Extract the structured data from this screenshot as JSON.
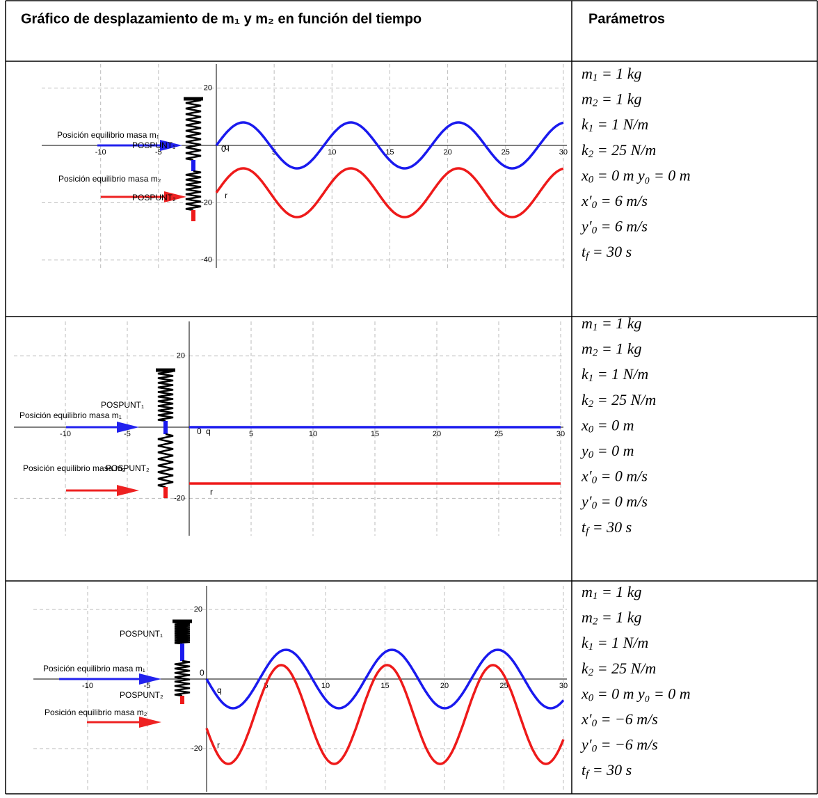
{
  "header": {
    "title": "Gráfico de desplazamiento de m₁ y m₂ en función del tiempo",
    "parameters": "Parámetros"
  },
  "rows": [
    {
      "plot": {
        "xticks": [
          -10,
          -5,
          5,
          10,
          15,
          20,
          25,
          30
        ],
        "yticks": [
          20,
          -20,
          -40
        ],
        "origin": "0",
        "equilibrium_1": "Posición equilibrio masa m₁",
        "equilibrium_2": "Posición equilibrio masa m₂",
        "pospunt_1": "POSPUNT₁",
        "pospunt_2": "POSPUNT₂",
        "curve_1": "q",
        "curve_2": "r"
      },
      "parameters": [
        {
          "base": "m",
          "sub": "1",
          "rest": " = 1 kg"
        },
        {
          "base": "m",
          "sub": "2",
          "rest": " = 1 kg"
        },
        {
          "base": "k",
          "sub": "1",
          "rest": " = 1 N/m"
        },
        {
          "base": "k",
          "sub": "2",
          "rest": " = 25 N/m"
        },
        {
          "base": "x",
          "sub": "0",
          "rest": " = 0 m y₀ = 0 m"
        },
        {
          "base": "x′",
          "sub": "0",
          "rest": " = 6 m/s"
        },
        {
          "base": "y′",
          "sub": "0",
          "rest": " = 6 m/s"
        },
        {
          "base": "t",
          "sub": "f",
          "rest": " = 30 s"
        }
      ]
    },
    {
      "plot": {
        "xticks": [
          -10,
          -5,
          5,
          10,
          15,
          20,
          25,
          30
        ],
        "yticks": [
          20,
          -20
        ],
        "origin": "0",
        "equilibrium_1": "Posición equilibrio masa m₁",
        "equilibrium_2": "Posición equilibrio masa m₂",
        "pospunt_1": "POSPUNT₁",
        "pospunt_2": "POSPUNT₂",
        "curve_1": "q",
        "curve_2": "r"
      },
      "parameters": [
        {
          "base": "m",
          "sub": "1",
          "rest": " = 1  kg"
        },
        {
          "base": "m",
          "sub": "2",
          "rest": " = 1  kg"
        },
        {
          "base": "k",
          "sub": "1",
          "rest": " = 1 N/m"
        },
        {
          "base": "k",
          "sub": "2",
          "rest": " = 25 N/m"
        },
        {
          "base": "x",
          "sub": "0",
          "rest": " = 0 m"
        },
        {
          "base": "y",
          "sub": "0",
          "rest": " = 0 m"
        },
        {
          "base": "x′",
          "sub": "0",
          "rest": " = 0 m/s"
        },
        {
          "base": "y′",
          "sub": "0",
          "rest": " = 0 m/s"
        },
        {
          "base": "t",
          "sub": "f",
          "rest": " = 30 s"
        }
      ]
    },
    {
      "plot": {
        "xticks": [
          -10,
          -5,
          5,
          10,
          15,
          20,
          25,
          30
        ],
        "yticks": [
          20,
          -20
        ],
        "origin": "0",
        "equilibrium_1": "Posición equilibrio masa m₁",
        "equilibrium_2": "Posición equilibrio masa m₂",
        "pospunt_1": "POSPUNT₁",
        "pospunt_2": "POSPUNT₂",
        "curve_1": "q",
        "curve_2": "r"
      },
      "parameters": [
        {
          "base": "m",
          "sub": "1",
          "rest": " = 1  kg"
        },
        {
          "base": "m",
          "sub": "2",
          "rest": " = 1  kg"
        },
        {
          "base": "k",
          "sub": "1",
          "rest": " = 1 N/m"
        },
        {
          "base": "k",
          "sub": "2",
          "rest": " = 25 N/m"
        },
        {
          "base": "x",
          "sub": "0",
          "rest": " = 0 m y₀ = 0 m"
        },
        {
          "base": "x′",
          "sub": "0",
          "rest": " = −6 m/s"
        },
        {
          "base": "y′",
          "sub": "0",
          "rest": " = −6 m/s"
        },
        {
          "base": "t",
          "sub": "f",
          "rest": " = 30 s"
        }
      ]
    }
  ]
}
